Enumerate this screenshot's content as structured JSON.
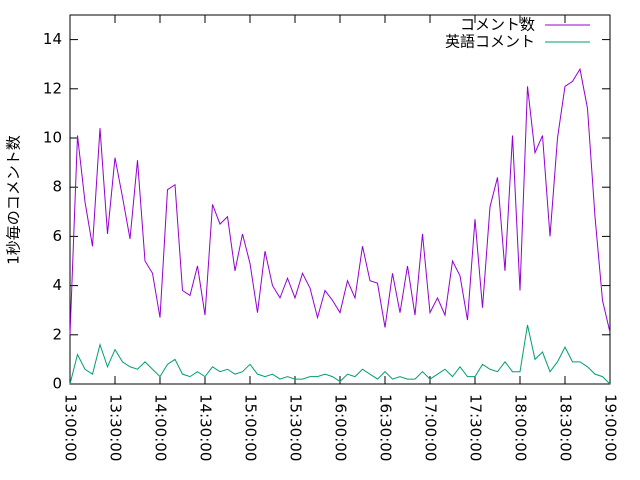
{
  "chart_data": {
    "type": "line",
    "ylabel": "1秒毎のコメント数",
    "x": [
      "13:00:00",
      "13:05:00",
      "13:10:00",
      "13:15:00",
      "13:20:00",
      "13:25:00",
      "13:30:00",
      "13:35:00",
      "13:40:00",
      "13:45:00",
      "13:50:00",
      "13:55:00",
      "14:00:00",
      "14:05:00",
      "14:10:00",
      "14:15:00",
      "14:20:00",
      "14:25:00",
      "14:30:00",
      "14:35:00",
      "14:40:00",
      "14:45:00",
      "14:50:00",
      "14:55:00",
      "15:00:00",
      "15:05:00",
      "15:10:00",
      "15:15:00",
      "15:20:00",
      "15:25:00",
      "15:30:00",
      "15:35:00",
      "15:40:00",
      "15:45:00",
      "15:50:00",
      "15:55:00",
      "16:00:00",
      "16:05:00",
      "16:10:00",
      "16:15:00",
      "16:20:00",
      "16:25:00",
      "16:30:00",
      "16:35:00",
      "16:40:00",
      "16:45:00",
      "16:50:00",
      "16:55:00",
      "17:00:00",
      "17:05:00",
      "17:10:00",
      "17:15:00",
      "17:20:00",
      "17:25:00",
      "17:30:00",
      "17:35:00",
      "17:40:00",
      "17:45:00",
      "17:50:00",
      "17:55:00",
      "18:00:00",
      "18:05:00",
      "18:10:00",
      "18:15:00",
      "18:20:00",
      "18:25:00",
      "18:30:00",
      "18:35:00",
      "18:40:00",
      "18:45:00",
      "18:50:00",
      "18:55:00",
      "19:00:00"
    ],
    "series": [
      {
        "name": "コメント数",
        "color": "#9400d3",
        "values": [
          2.0,
          10.1,
          7.4,
          5.6,
          10.4,
          6.1,
          9.2,
          7.6,
          5.9,
          9.1,
          5.0,
          4.5,
          2.7,
          7.9,
          8.1,
          3.8,
          3.6,
          4.8,
          2.8,
          7.3,
          6.5,
          6.8,
          4.6,
          6.1,
          4.9,
          2.9,
          5.4,
          4.0,
          3.5,
          4.3,
          3.5,
          4.5,
          3.9,
          2.7,
          3.8,
          3.4,
          2.9,
          4.2,
          3.5,
          5.6,
          4.2,
          4.1,
          2.3,
          4.5,
          2.9,
          4.8,
          2.8,
          6.1,
          2.9,
          3.5,
          2.8,
          5.0,
          4.4,
          2.6,
          6.7,
          3.1,
          7.2,
          8.4,
          4.6,
          10.1,
          3.8,
          12.1,
          9.4,
          10.1,
          6.0,
          10.0,
          12.1,
          12.3,
          12.8,
          11.2,
          6.8,
          3.4,
          2.1
        ]
      },
      {
        "name": "英語コメント",
        "color": "#009e73",
        "values": [
          0,
          1.2,
          0.6,
          0.4,
          1.6,
          0.7,
          1.4,
          0.9,
          0.7,
          0.6,
          0.9,
          0.6,
          0.3,
          0.8,
          1.0,
          0.4,
          0.3,
          0.5,
          0.3,
          0.7,
          0.5,
          0.6,
          0.4,
          0.5,
          0.8,
          0.4,
          0.3,
          0.4,
          0.2,
          0.3,
          0.2,
          0.2,
          0.3,
          0.3,
          0.4,
          0.3,
          0.1,
          0.4,
          0.3,
          0.6,
          0.4,
          0.2,
          0.5,
          0.2,
          0.3,
          0.2,
          0.2,
          0.5,
          0.2,
          0.4,
          0.6,
          0.3,
          0.7,
          0.3,
          0.3,
          0.8,
          0.6,
          0.5,
          0.9,
          0.5,
          0.5,
          2.4,
          1.0,
          1.3,
          0.5,
          0.9,
          1.5,
          0.9,
          0.9,
          0.7,
          0.4,
          0.3,
          0
        ]
      }
    ],
    "xlim": [
      "13:00:00",
      "19:00:00"
    ],
    "xticks": [
      "13:00:00",
      "13:30:00",
      "14:00:00",
      "14:30:00",
      "15:00:00",
      "15:30:00",
      "16:00:00",
      "16:30:00",
      "17:00:00",
      "17:30:00",
      "18:00:00",
      "18:30:00",
      "19:00:00"
    ],
    "ylim": [
      0,
      15
    ],
    "yticks": [
      0,
      2,
      4,
      6,
      8,
      10,
      12,
      14
    ],
    "legend": "top right",
    "grid": false
  }
}
